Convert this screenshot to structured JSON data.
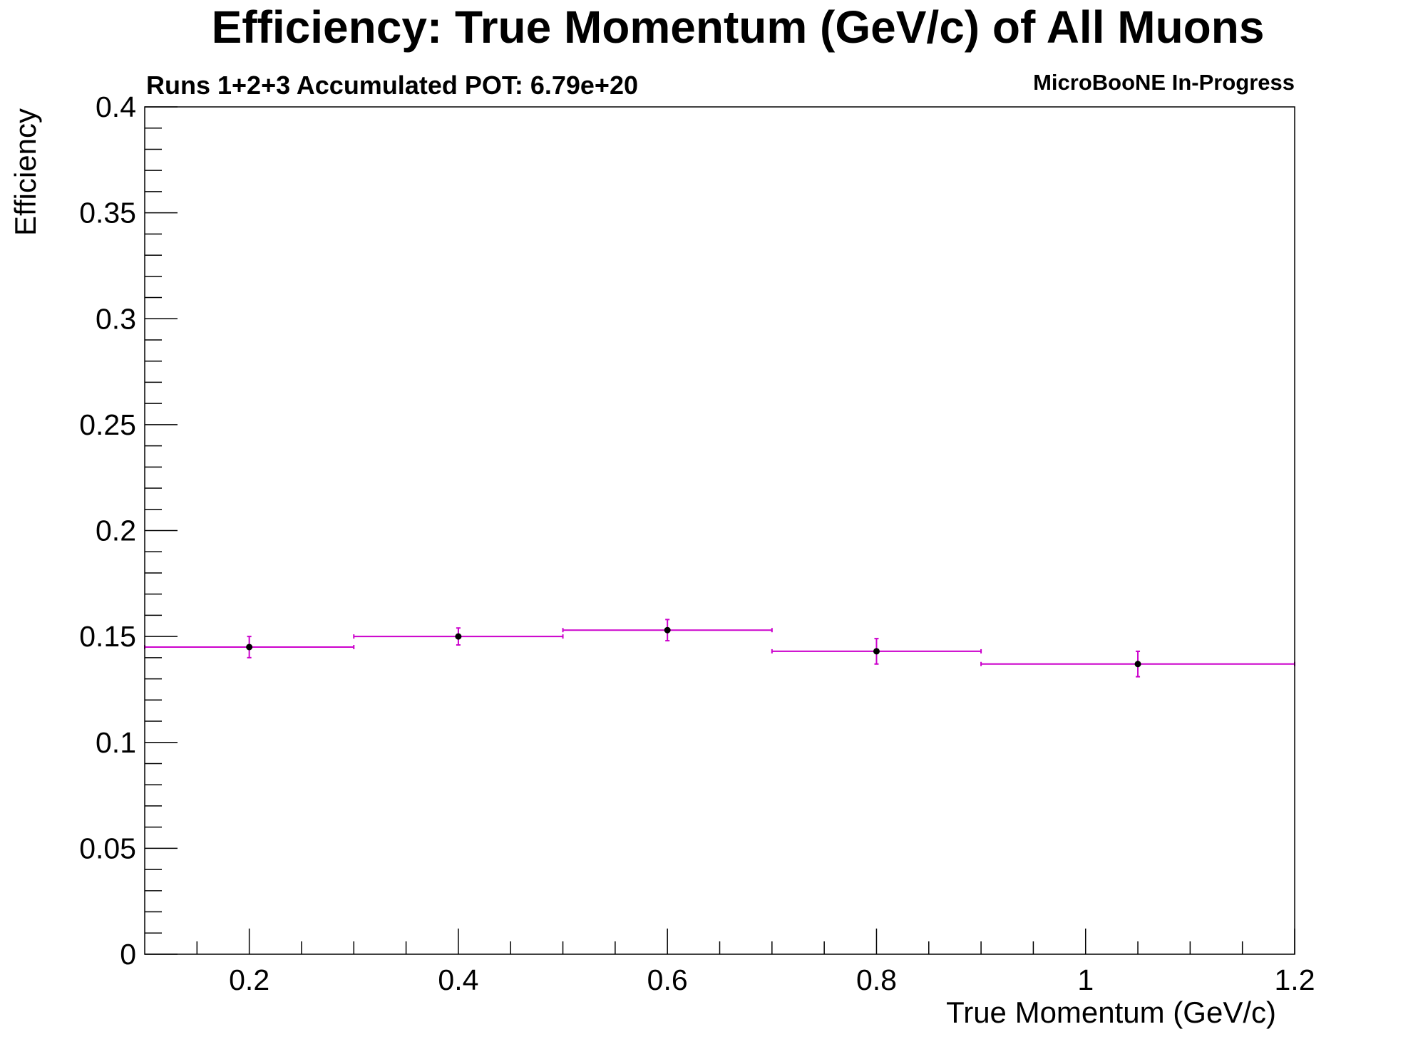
{
  "chart_data": {
    "type": "scatter",
    "title": "Efficiency: True Momentum (GeV/c) of All Muons",
    "subtitle_left": "Runs 1+2+3 Accumulated POT: 6.79e+20",
    "subtitle_right": "MicroBooNE In-Progress",
    "xlabel": "True Momentum (GeV/c)",
    "ylabel": "Efficiency",
    "xlim": [
      0.1,
      1.2
    ],
    "ylim": [
      0,
      0.4
    ],
    "x_ticks": [
      "0.2",
      "0.4",
      "0.6",
      "0.8",
      "1",
      "1.2"
    ],
    "y_ticks": [
      "0",
      "0.05",
      "0.1",
      "0.15",
      "0.2",
      "0.25",
      "0.3",
      "0.35",
      "0.4"
    ],
    "grid": false,
    "series": [
      {
        "points": [
          {
            "x": 0.2,
            "x_low": 0.1,
            "x_high": 0.3,
            "y": 0.145,
            "y_err": 0.005
          },
          {
            "x": 0.4,
            "x_low": 0.3,
            "x_high": 0.5,
            "y": 0.15,
            "y_err": 0.004
          },
          {
            "x": 0.6,
            "x_low": 0.5,
            "x_high": 0.7,
            "y": 0.153,
            "y_err": 0.005
          },
          {
            "x": 0.8,
            "x_low": 0.7,
            "x_high": 0.9,
            "y": 0.143,
            "y_err": 0.006
          },
          {
            "x": 1.05,
            "x_low": 0.9,
            "x_high": 1.2,
            "y": 0.137,
            "y_err": 0.006
          }
        ]
      }
    ],
    "colors": {
      "error_bars": "#cc00cc",
      "markers": "#000000",
      "frame": "#000000"
    }
  }
}
